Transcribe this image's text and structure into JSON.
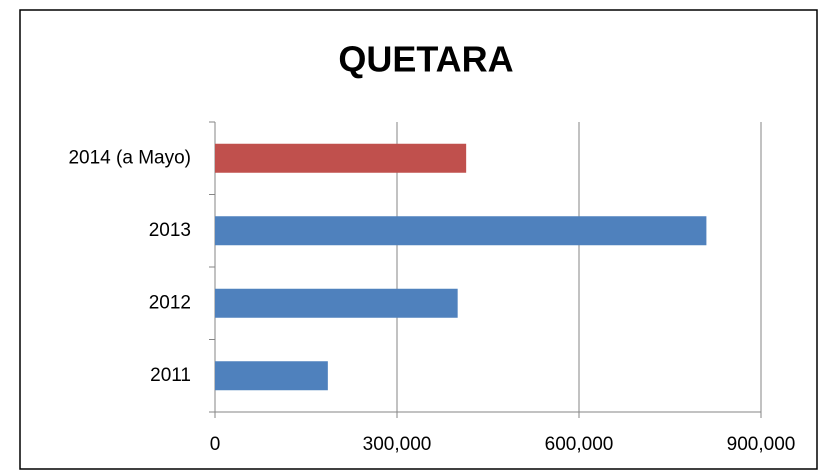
{
  "chart_data": {
    "type": "barh",
    "title": "QUETARA",
    "categories": [
      "2011",
      "2012",
      "2013",
      "2014 (a Mayo)"
    ],
    "values": [
      186000,
      400000,
      810000,
      414000
    ],
    "colors": [
      "#4f81bd",
      "#4f81bd",
      "#4f81bd",
      "#c0504d"
    ],
    "xlim": [
      0,
      900000
    ],
    "xticks": [
      0,
      {
        "value": 300000,
        "label": "300,000"
      },
      {
        "value": 600000,
        "label": "600,000"
      },
      {
        "value": 900000,
        "label": "900,000"
      }
    ],
    "grid": true
  }
}
